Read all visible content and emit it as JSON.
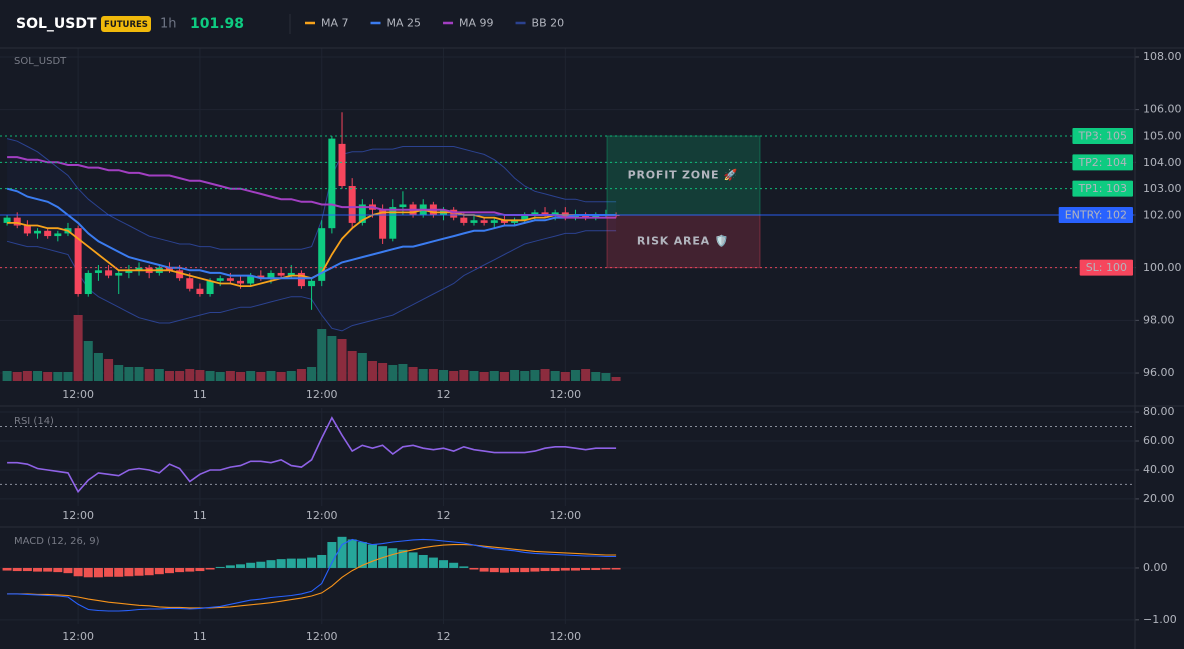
{
  "chart_data": [
    {
      "type": "candlestick",
      "title": "SOL_USDT",
      "badge": "FUTURES",
      "interval": "1h",
      "last_price": 101.98,
      "categories": [
        null,
        null,
        null,
        null,
        null,
        null,
        null,
        "12:00",
        null,
        null,
        null,
        null,
        null,
        null,
        null,
        null,
        null,
        null,
        null,
        "11",
        null,
        null,
        null,
        null,
        null,
        null,
        null,
        null,
        null,
        null,
        null,
        "12:00",
        null,
        null,
        null,
        null,
        null,
        null,
        null,
        null,
        null,
        null,
        null,
        "12",
        null,
        null,
        null,
        null,
        null,
        null,
        null,
        null,
        null,
        null,
        null,
        "12:00",
        null,
        null,
        null,
        null,
        null
      ],
      "open": [
        101.7,
        101.9,
        101.6,
        101.3,
        101.4,
        101.2,
        101.3,
        101.5,
        99.0,
        99.8,
        99.9,
        99.7,
        99.8,
        99.9,
        100.0,
        99.8,
        100.0,
        99.9,
        99.6,
        99.2,
        99.0,
        99.5,
        99.6,
        99.5,
        99.4,
        99.7,
        99.6,
        99.8,
        99.7,
        99.8,
        99.3,
        99.5,
        101.5,
        104.7,
        103.1,
        101.7,
        102.4,
        102.2,
        101.1,
        102.3,
        102.4,
        102.0,
        102.4,
        102.0,
        102.2,
        101.9,
        101.7,
        101.8,
        101.7,
        101.8,
        101.7,
        101.8,
        102.0,
        102.1,
        102.0,
        102.1,
        101.9,
        102.0,
        101.9,
        102.0,
        102.0
      ],
      "high": [
        102.0,
        102.1,
        101.8,
        101.5,
        101.5,
        101.4,
        101.7,
        101.6,
        99.9,
        100.1,
        100.1,
        99.9,
        100.1,
        100.2,
        100.1,
        100.1,
        100.2,
        100.1,
        99.8,
        99.4,
        99.6,
        99.7,
        99.8,
        99.7,
        99.8,
        99.9,
        99.9,
        100.0,
        100.1,
        99.9,
        99.6,
        101.8,
        105.0,
        105.9,
        103.4,
        102.6,
        102.6,
        102.4,
        102.6,
        102.9,
        102.5,
        102.6,
        102.5,
        102.3,
        102.3,
        102.1,
        102.0,
        101.9,
        101.9,
        102.0,
        101.9,
        102.1,
        102.2,
        102.3,
        102.2,
        102.3,
        102.2,
        102.1,
        102.1,
        102.2,
        102.1
      ],
      "low": [
        101.6,
        101.5,
        101.2,
        101.1,
        101.1,
        101.0,
        101.2,
        98.9,
        98.9,
        99.5,
        99.6,
        99.0,
        99.6,
        99.7,
        99.6,
        99.7,
        99.8,
        99.5,
        99.1,
        98.9,
        98.9,
        99.3,
        99.4,
        99.2,
        99.3,
        99.5,
        99.4,
        99.6,
        99.6,
        99.2,
        98.4,
        99.3,
        101.3,
        103.0,
        101.5,
        101.6,
        101.9,
        100.9,
        101.0,
        102.0,
        101.9,
        101.9,
        101.9,
        101.8,
        101.8,
        101.6,
        101.6,
        101.6,
        101.5,
        101.6,
        101.6,
        101.7,
        101.8,
        101.9,
        101.8,
        101.8,
        101.8,
        101.8,
        101.8,
        101.9,
        101.9
      ],
      "close": [
        101.9,
        101.6,
        101.3,
        101.4,
        101.2,
        101.3,
        101.5,
        99.0,
        99.8,
        99.9,
        99.7,
        99.8,
        99.9,
        100.0,
        99.8,
        100.0,
        99.9,
        99.6,
        99.2,
        99.0,
        99.5,
        99.6,
        99.5,
        99.4,
        99.7,
        99.6,
        99.8,
        99.7,
        99.8,
        99.3,
        99.5,
        101.5,
        104.9,
        103.1,
        101.7,
        102.4,
        102.2,
        101.1,
        102.3,
        102.4,
        102.0,
        102.4,
        102.0,
        102.2,
        101.9,
        101.7,
        101.8,
        101.7,
        101.8,
        101.7,
        101.8,
        102.0,
        102.1,
        102.0,
        102.1,
        101.9,
        102.0,
        101.9,
        102.0,
        102.0,
        101.98
      ],
      "volume": [
        10,
        9,
        10,
        10,
        9,
        9,
        9,
        66,
        40,
        28,
        22,
        16,
        14,
        14,
        12,
        12,
        10,
        10,
        12,
        11,
        10,
        9,
        10,
        9,
        10,
        9,
        10,
        9,
        10,
        12,
        14,
        52,
        45,
        42,
        30,
        28,
        20,
        18,
        16,
        17,
        14,
        12,
        12,
        11,
        10,
        11,
        10,
        9,
        10,
        9,
        11,
        10,
        11,
        12,
        10,
        9,
        11,
        12,
        9,
        8,
        4
      ],
      "up_color": "#0ecb81",
      "down_color": "#f6465d",
      "volume_up_color": "#1d6b5e",
      "volume_down_color": "#8b2c3e",
      "series": [
        {
          "name": "MA 7",
          "color": "#f7a21b",
          "values": [
            101.7,
            101.7,
            101.6,
            101.6,
            101.5,
            101.5,
            101.4,
            101.1,
            100.8,
            100.5,
            100.2,
            99.9,
            99.9,
            99.9,
            99.9,
            99.9,
            99.9,
            99.8,
            99.7,
            99.6,
            99.5,
            99.4,
            99.4,
            99.3,
            99.3,
            99.4,
            99.5,
            99.6,
            99.7,
            99.7,
            99.6,
            99.8,
            100.5,
            101.1,
            101.5,
            101.8,
            102.0,
            102.1,
            102.1,
            102.1,
            102.1,
            102.2,
            102.1,
            102.1,
            102.1,
            102.0,
            102.0,
            101.9,
            101.9,
            101.8,
            101.8,
            101.8,
            101.9,
            101.9,
            102.0,
            102.0,
            102.0,
            102.0,
            102.0,
            102.0,
            102.0
          ]
        },
        {
          "name": "MA 25",
          "color": "#3b7cf0",
          "values": [
            103.0,
            102.9,
            102.7,
            102.6,
            102.5,
            102.3,
            102.0,
            101.7,
            101.3,
            101.0,
            100.8,
            100.6,
            100.4,
            100.3,
            100.2,
            100.1,
            100.0,
            100.0,
            99.9,
            99.9,
            99.8,
            99.8,
            99.7,
            99.7,
            99.7,
            99.6,
            99.6,
            99.6,
            99.6,
            99.6,
            99.6,
            99.8,
            100.0,
            100.2,
            100.3,
            100.4,
            100.5,
            100.6,
            100.7,
            100.8,
            100.8,
            100.9,
            101.0,
            101.1,
            101.2,
            101.3,
            101.4,
            101.4,
            101.5,
            101.6,
            101.6,
            101.7,
            101.8,
            101.8,
            101.9,
            101.9,
            102.0,
            102.0,
            102.0,
            102.0,
            102.0
          ]
        },
        {
          "name": "MA 99",
          "color": "#a23fc2",
          "values": [
            104.2,
            104.2,
            104.1,
            104.1,
            104.0,
            104.0,
            103.9,
            103.9,
            103.8,
            103.8,
            103.7,
            103.7,
            103.6,
            103.6,
            103.5,
            103.5,
            103.5,
            103.4,
            103.3,
            103.3,
            103.2,
            103.1,
            103.0,
            103.0,
            102.9,
            102.8,
            102.7,
            102.6,
            102.6,
            102.5,
            102.5,
            102.4,
            102.4,
            102.3,
            102.3,
            102.3,
            102.3,
            102.2,
            102.2,
            102.2,
            102.2,
            102.2,
            102.2,
            102.2,
            102.1,
            102.1,
            102.1,
            102.1,
            102.1,
            102.0,
            102.0,
            102.0,
            102.0,
            102.0,
            102.0,
            101.9,
            101.9,
            101.9,
            101.9,
            101.9,
            101.9
          ]
        },
        {
          "name": "BB 20",
          "color": "#2b4290",
          "upper": [
            104.9,
            104.8,
            104.6,
            104.4,
            104.1,
            103.8,
            103.5,
            103.0,
            102.6,
            102.3,
            102.0,
            101.8,
            101.6,
            101.4,
            101.2,
            101.1,
            101.0,
            100.9,
            100.9,
            100.8,
            100.8,
            100.7,
            100.7,
            100.7,
            100.7,
            100.7,
            100.7,
            100.7,
            100.7,
            100.7,
            100.8,
            101.8,
            103.5,
            104.3,
            104.4,
            104.4,
            104.5,
            104.5,
            104.5,
            104.6,
            104.6,
            104.6,
            104.6,
            104.6,
            104.6,
            104.5,
            104.4,
            104.3,
            104.1,
            103.8,
            103.4,
            103.1,
            102.9,
            102.8,
            102.7,
            102.6,
            102.6,
            102.5,
            102.5,
            102.5,
            102.5
          ],
          "lower": [
            101.0,
            100.9,
            100.8,
            100.8,
            100.7,
            100.6,
            100.5,
            99.8,
            99.2,
            98.9,
            98.7,
            98.5,
            98.3,
            98.1,
            98.0,
            97.9,
            97.9,
            98.0,
            98.1,
            98.2,
            98.3,
            98.3,
            98.4,
            98.5,
            98.5,
            98.6,
            98.7,
            98.8,
            98.9,
            98.9,
            98.8,
            98.2,
            97.7,
            97.6,
            97.8,
            97.9,
            98.0,
            98.1,
            98.2,
            98.4,
            98.6,
            98.8,
            99.0,
            99.2,
            99.4,
            99.7,
            99.9,
            100.1,
            100.3,
            100.5,
            100.7,
            100.9,
            101.0,
            101.1,
            101.2,
            101.3,
            101.3,
            101.4,
            101.4,
            101.4,
            101.4
          ]
        }
      ],
      "levels": [
        {
          "label": "TP3: 105",
          "value": 105,
          "tag": "105.00",
          "color": "#0ecb81",
          "dashed": true
        },
        {
          "label": "TP2: 104",
          "value": 104,
          "tag": "104.00",
          "color": "#0ecb81",
          "dashed": true
        },
        {
          "label": "TP1: 103",
          "value": 103,
          "tag": "103.00",
          "color": "#0ecb81",
          "dashed": true
        },
        {
          "label": "ENTRY: 102",
          "value": 102,
          "tag": "102.00",
          "color": "#2962ff",
          "dashed": false
        },
        {
          "label": "SL: 100",
          "value": 100,
          "tag": "100.00",
          "color": "#f6465d",
          "dashed": true
        }
      ],
      "zones": [
        {
          "label": "PROFIT ZONE 🚀",
          "from": 102,
          "to": 105,
          "color": "#0ecb81"
        },
        {
          "label": "RISK AREA 🛡️",
          "from": 100,
          "to": 102,
          "color": "#f6465d"
        }
      ],
      "ylim": [
        95.66,
        108.34
      ],
      "yticks": [
        {
          "value": 96,
          "label": "96.00"
        },
        {
          "value": 98,
          "label": "98.00"
        },
        {
          "value": 100,
          "label": "100.00"
        },
        {
          "value": 102,
          "label": "102.00"
        },
        {
          "value": 104,
          "label": "104.00"
        },
        {
          "value": 106,
          "label": "106.00"
        },
        {
          "value": 108,
          "label": "108.00"
        }
      ],
      "grid": true
    },
    {
      "type": "line",
      "title": "RSI (14)",
      "color": "#8e62e6",
      "values": [
        45,
        45,
        44,
        41,
        40,
        39,
        38,
        25,
        33,
        38,
        37,
        36,
        40,
        41,
        40,
        38,
        44,
        41,
        32,
        37,
        40,
        40,
        42,
        43,
        46,
        46,
        45,
        47,
        43,
        42,
        47,
        62,
        76,
        64,
        53,
        57,
        55,
        57,
        51,
        56,
        57,
        55,
        54,
        55,
        53,
        56,
        54,
        53,
        52,
        52,
        52,
        52,
        53,
        55,
        56,
        56,
        55,
        54,
        55,
        55,
        55
      ],
      "bands": [
        70,
        30
      ],
      "ylim": [
        15.1,
        82.8
      ],
      "yticks": [
        {
          "value": 20,
          "label": "20.00"
        },
        {
          "value": 40,
          "label": "40.00"
        },
        {
          "value": 60,
          "label": "60.00"
        },
        {
          "value": 80,
          "label": "80.00"
        }
      ],
      "grid": true
    },
    {
      "type": "macd",
      "title": "MACD (12, 26, 9)",
      "histogram": [
        -0.05,
        -0.06,
        -0.06,
        -0.07,
        -0.07,
        -0.08,
        -0.1,
        -0.16,
        -0.18,
        -0.18,
        -0.17,
        -0.17,
        -0.16,
        -0.15,
        -0.14,
        -0.12,
        -0.1,
        -0.08,
        -0.07,
        -0.06,
        -0.03,
        0.02,
        0.05,
        0.07,
        0.1,
        0.12,
        0.15,
        0.17,
        0.18,
        0.18,
        0.2,
        0.25,
        0.5,
        0.6,
        0.55,
        0.5,
        0.45,
        0.42,
        0.38,
        0.35,
        0.3,
        0.25,
        0.2,
        0.15,
        0.1,
        0.03,
        -0.03,
        -0.07,
        -0.08,
        -0.09,
        -0.08,
        -0.08,
        -0.07,
        -0.06,
        -0.06,
        -0.05,
        -0.05,
        -0.04,
        -0.04,
        -0.03,
        -0.03
      ],
      "macd": [
        -0.5,
        -0.5,
        -0.51,
        -0.52,
        -0.53,
        -0.54,
        -0.56,
        -0.7,
        -0.8,
        -0.82,
        -0.83,
        -0.83,
        -0.82,
        -0.8,
        -0.79,
        -0.79,
        -0.78,
        -0.78,
        -0.79,
        -0.78,
        -0.76,
        -0.74,
        -0.7,
        -0.66,
        -0.62,
        -0.6,
        -0.57,
        -0.55,
        -0.53,
        -0.5,
        -0.45,
        -0.3,
        0.1,
        0.45,
        0.55,
        0.5,
        0.45,
        0.47,
        0.5,
        0.52,
        0.54,
        0.55,
        0.54,
        0.52,
        0.5,
        0.48,
        0.44,
        0.4,
        0.37,
        0.35,
        0.33,
        0.3,
        0.28,
        0.27,
        0.26,
        0.25,
        0.24,
        0.23,
        0.23,
        0.22,
        0.22
      ],
      "signal": [
        -0.5,
        -0.5,
        -0.5,
        -0.51,
        -0.51,
        -0.52,
        -0.53,
        -0.56,
        -0.6,
        -0.63,
        -0.66,
        -0.68,
        -0.7,
        -0.72,
        -0.73,
        -0.75,
        -0.76,
        -0.76,
        -0.77,
        -0.77,
        -0.77,
        -0.76,
        -0.75,
        -0.73,
        -0.71,
        -0.69,
        -0.67,
        -0.64,
        -0.61,
        -0.58,
        -0.54,
        -0.48,
        -0.35,
        -0.18,
        -0.05,
        0.05,
        0.13,
        0.2,
        0.26,
        0.31,
        0.35,
        0.39,
        0.42,
        0.44,
        0.45,
        0.45,
        0.44,
        0.42,
        0.4,
        0.38,
        0.36,
        0.34,
        0.32,
        0.31,
        0.3,
        0.29,
        0.28,
        0.27,
        0.26,
        0.25,
        0.25
      ],
      "macd_color": "#2962ff",
      "signal_color": "#f7931a",
      "hist_up_color": "#26a69a",
      "hist_down_color": "#ef5350",
      "ylim": [
        -1.08,
        0.77
      ],
      "yticks": [
        {
          "value": 0,
          "label": "0.00"
        },
        {
          "value": -1,
          "label": "−1.00"
        }
      ],
      "grid": true
    }
  ]
}
